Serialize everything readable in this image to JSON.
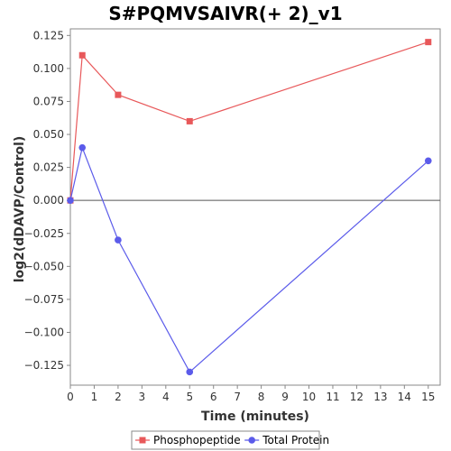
{
  "chart_data": {
    "type": "line",
    "title": "S#PQMVSAIVR(+ 2)_v1",
    "xlabel": "Time (minutes)",
    "ylabel": "log2(dDAVP/Control)",
    "xlim": [
      0,
      15.5
    ],
    "ylim": [
      -0.14,
      0.13
    ],
    "x_ticks": [
      0,
      1,
      2,
      3,
      4,
      5,
      6,
      7,
      8,
      9,
      10,
      11,
      12,
      13,
      14,
      15
    ],
    "y_ticks": [
      0.125,
      0.1,
      0.075,
      0.05,
      0.025,
      0.0,
      -0.025,
      -0.05,
      -0.075,
      -0.1,
      -0.125
    ],
    "y_tick_labels": [
      "0.125",
      "0.100",
      "0.075",
      "0.050",
      "0.025",
      "0.000",
      "−0.025",
      "−0.050",
      "−0.075",
      "−0.100",
      "−0.125"
    ],
    "zero_line": true,
    "grid": false,
    "legend_position": "bottom",
    "series": [
      {
        "name": "Phosphopeptide",
        "color": "#e8585a",
        "marker": "square",
        "x": [
          0,
          0.5,
          2,
          5,
          15
        ],
        "values": [
          0.0,
          0.11,
          0.08,
          0.06,
          0.12
        ]
      },
      {
        "name": "Total Protein",
        "color": "#5b5bea",
        "marker": "circle",
        "x": [
          0,
          0.5,
          2,
          5,
          15
        ],
        "values": [
          0.0,
          0.04,
          -0.03,
          -0.13,
          0.03
        ]
      }
    ]
  }
}
